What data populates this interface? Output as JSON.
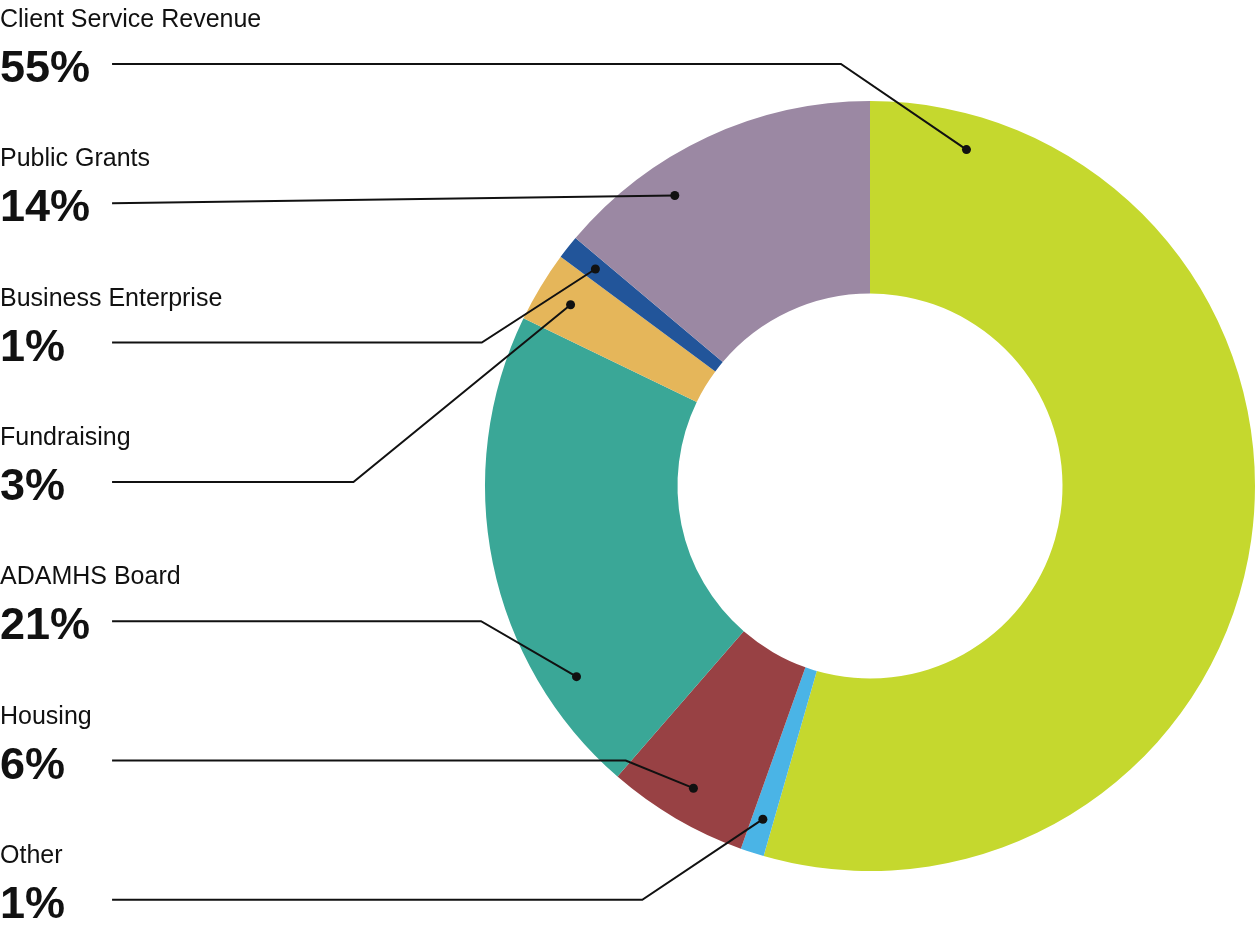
{
  "chart_data": {
    "type": "doughnut",
    "categories": [
      "Client Service Revenue",
      "Public Grants",
      "Business Enterprise",
      "Fundraising",
      "ADAMHS Board",
      "Housing",
      "Other"
    ],
    "values": [
      55,
      14,
      1,
      3,
      21,
      6,
      1
    ],
    "value_labels": [
      "55%",
      "14%",
      "1%",
      "3%",
      "21%",
      "6%",
      "1%"
    ],
    "colors": [
      "#c5d82e",
      "#9b88a3",
      "#22559a",
      "#e5b65a",
      "#3aa797",
      "#984144",
      "#4ab4e6"
    ],
    "data_labels": true,
    "legend": false
  }
}
